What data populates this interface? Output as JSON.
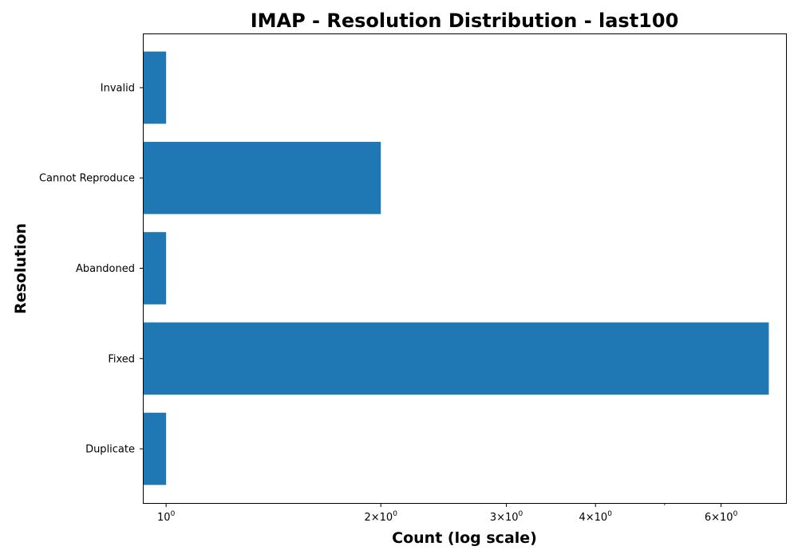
{
  "chart_data": {
    "type": "bar",
    "orientation": "horizontal",
    "title": "IMAP - Resolution Distribution - last100",
    "xlabel": "Count (log scale)",
    "ylabel": "Resolution",
    "x_scale": "log",
    "xlim": [
      0.93,
      7.4
    ],
    "categories": [
      "Duplicate",
      "Fixed",
      "Abandoned",
      "Cannot Reproduce",
      "Invalid"
    ],
    "values": [
      1,
      7,
      1,
      2,
      1
    ],
    "bar_color": "#1f77b4",
    "x_major_ticks": [
      {
        "value": 1,
        "base": "10",
        "exp": "0"
      },
      {
        "value": 2,
        "base": "2×10",
        "exp": "0"
      },
      {
        "value": 3,
        "base": "3×10",
        "exp": "0"
      },
      {
        "value": 4,
        "base": "4×10",
        "exp": "0"
      },
      {
        "value": 6,
        "base": "6×10",
        "exp": "0"
      }
    ],
    "x_minor_ticks": [
      5
    ],
    "grid": false,
    "legend": "none"
  }
}
